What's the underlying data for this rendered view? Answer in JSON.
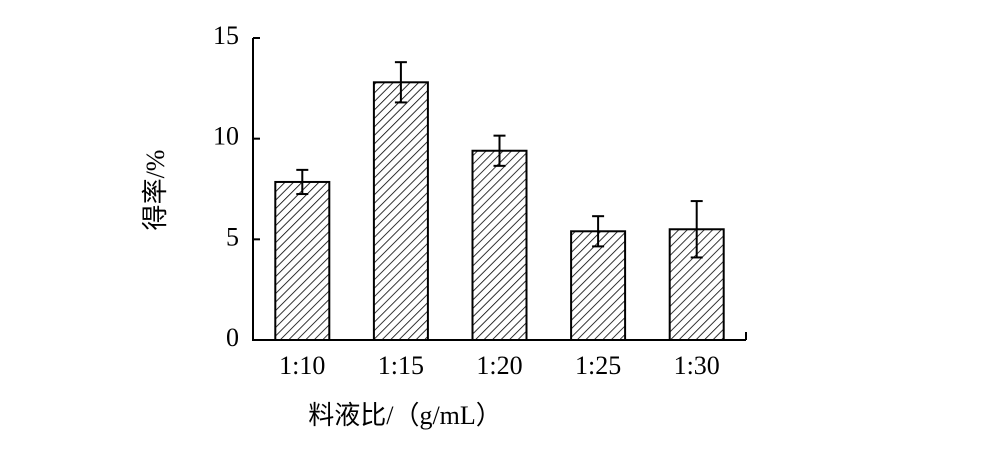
{
  "chart_data": {
    "type": "bar",
    "x_label": "料液比/（g/mL）",
    "y_label": "得率/%",
    "categories": [
      "1:10",
      "1:15",
      "1:20",
      "1:25",
      "1:30"
    ],
    "values": [
      7.85,
      12.8,
      9.4,
      5.4,
      5.5
    ],
    "errors": [
      0.6,
      1.0,
      0.75,
      0.75,
      1.4
    ],
    "color": "#000000",
    "ylim": [
      0,
      15
    ],
    "yticks": [
      0,
      5,
      10,
      15
    ]
  }
}
